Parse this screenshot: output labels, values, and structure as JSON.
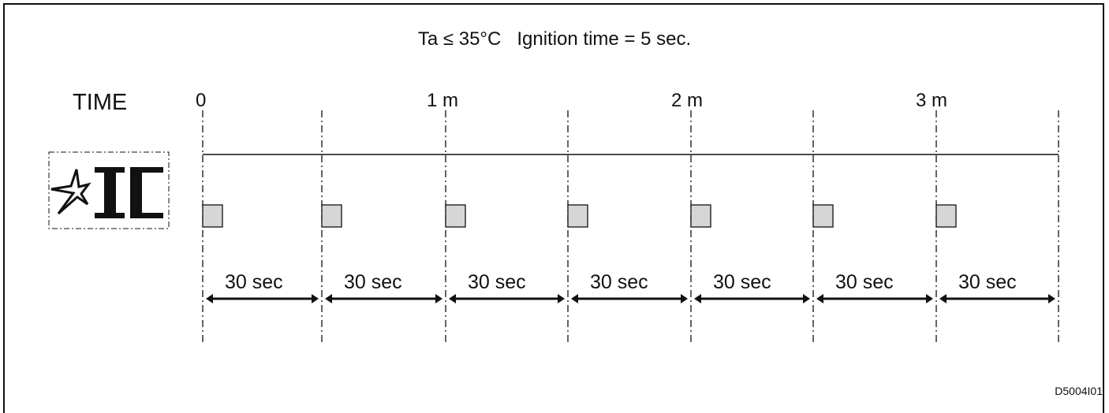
{
  "title": "Ta ≤ 35°C   Ignition time = 5 sec.",
  "time_label": "TIME",
  "time_ticks": [
    "0",
    "1 m",
    "2 m",
    "3 m"
  ],
  "interval_label": "30 sec",
  "interval_count": 7,
  "pulse_count": 7,
  "figure_code": "D5004I01",
  "icon": "ignition-indicator-icon",
  "colors": {
    "pulse_fill": "#d6d6d6",
    "line": "#111111"
  }
}
